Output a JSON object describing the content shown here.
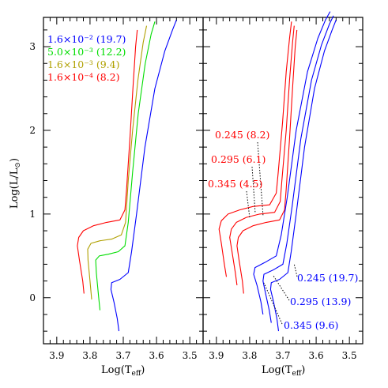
{
  "chart_data": [
    {
      "type": "line",
      "panel": "left",
      "xlabel": "Log(T_eff)",
      "ylabel": "Log(L/L_sun)",
      "xlim": [
        3.94,
        3.46
      ],
      "ylim": [
        -0.55,
        3.35
      ],
      "x_ticks": [
        "3.9",
        "3.8",
        "3.7",
        "3.6",
        "3.5"
      ],
      "y_ticks": [
        "0",
        "1",
        "2",
        "3"
      ],
      "legend": [
        {
          "label": "1.6×10⁻² (19.7)",
          "color": "#0000ff"
        },
        {
          "label": "5.0×10⁻³ (12.2)",
          "color": "#00dd00"
        },
        {
          "label": "1.6×10⁻³ (9.4)",
          "color": "#b0a000"
        },
        {
          "label": "1.6×10⁻⁴ (8.2)",
          "color": "#ff0000"
        }
      ],
      "series": [
        {
          "color": "#ff0000",
          "points": [
            [
              3.818,
              0.05
            ],
            [
              3.822,
              0.2
            ],
            [
              3.832,
              0.45
            ],
            [
              3.838,
              0.62
            ],
            [
              3.834,
              0.72
            ],
            [
              3.82,
              0.8
            ],
            [
              3.79,
              0.86
            ],
            [
              3.75,
              0.9
            ],
            [
              3.71,
              0.93
            ],
            [
              3.695,
              1.05
            ],
            [
              3.69,
              1.3
            ],
            [
              3.68,
              1.9
            ],
            [
              3.671,
              2.5
            ],
            [
              3.663,
              3.0
            ],
            [
              3.658,
              3.2
            ]
          ]
        },
        {
          "color": "#b0a000",
          "points": [
            [
              3.795,
              -0.02
            ],
            [
              3.8,
              0.2
            ],
            [
              3.806,
              0.45
            ],
            [
              3.807,
              0.58
            ],
            [
              3.797,
              0.65
            ],
            [
              3.77,
              0.68
            ],
            [
              3.735,
              0.7
            ],
            [
              3.706,
              0.75
            ],
            [
              3.693,
              0.9
            ],
            [
              3.685,
              1.4
            ],
            [
              3.672,
              2.0
            ],
            [
              3.656,
              2.6
            ],
            [
              3.64,
              3.05
            ],
            [
              3.63,
              3.25
            ]
          ]
        },
        {
          "color": "#00dd00",
          "points": [
            [
              3.77,
              -0.15
            ],
            [
              3.775,
              0.05
            ],
            [
              3.781,
              0.3
            ],
            [
              3.783,
              0.45
            ],
            [
              3.772,
              0.5
            ],
            [
              3.745,
              0.52
            ],
            [
              3.715,
              0.55
            ],
            [
              3.695,
              0.62
            ],
            [
              3.685,
              0.9
            ],
            [
              3.672,
              1.5
            ],
            [
              3.655,
              2.2
            ],
            [
              3.634,
              2.8
            ],
            [
              3.616,
              3.15
            ],
            [
              3.605,
              3.3
            ]
          ]
        },
        {
          "color": "#0000ff",
          "points": [
            [
              3.713,
              -0.4
            ],
            [
              3.718,
              -0.25
            ],
            [
              3.728,
              -0.05
            ],
            [
              3.737,
              0.1
            ],
            [
              3.735,
              0.18
            ],
            [
              3.71,
              0.22
            ],
            [
              3.685,
              0.3
            ],
            [
              3.675,
              0.55
            ],
            [
              3.66,
              1.0
            ],
            [
              3.635,
              1.8
            ],
            [
              3.605,
              2.5
            ],
            [
              3.575,
              2.95
            ],
            [
              3.552,
              3.2
            ],
            [
              3.54,
              3.32
            ]
          ]
        }
      ]
    },
    {
      "type": "line",
      "panel": "right",
      "xlabel": "Log(T_eff)",
      "xlim": [
        3.94,
        3.46
      ],
      "ylim": [
        -0.55,
        3.35
      ],
      "x_ticks": [
        "3.9",
        "3.8",
        "3.7",
        "3.6",
        "3.5"
      ],
      "series": [
        {
          "color": "#ff0000",
          "label": "0.245 (8.2)",
          "points": [
            [
              3.818,
              0.05
            ],
            [
              3.822,
              0.2
            ],
            [
              3.832,
              0.45
            ],
            [
              3.838,
              0.62
            ],
            [
              3.834,
              0.72
            ],
            [
              3.82,
              0.8
            ],
            [
              3.79,
              0.86
            ],
            [
              3.75,
              0.9
            ],
            [
              3.71,
              0.93
            ],
            [
              3.695,
              1.05
            ],
            [
              3.69,
              1.3
            ],
            [
              3.68,
              1.9
            ],
            [
              3.671,
              2.5
            ],
            [
              3.663,
              3.0
            ],
            [
              3.658,
              3.2
            ]
          ]
        },
        {
          "color": "#ff0000",
          "label": "0.295 (6.1)",
          "points": [
            [
              3.838,
              0.15
            ],
            [
              3.843,
              0.3
            ],
            [
              3.853,
              0.55
            ],
            [
              3.86,
              0.72
            ],
            [
              3.855,
              0.82
            ],
            [
              3.84,
              0.9
            ],
            [
              3.81,
              0.96
            ],
            [
              3.77,
              1.0
            ],
            [
              3.725,
              1.02
            ],
            [
              3.708,
              1.15
            ],
            [
              3.703,
              1.4
            ],
            [
              3.69,
              2.0
            ],
            [
              3.68,
              2.6
            ],
            [
              3.671,
              3.05
            ],
            [
              3.666,
              3.25
            ]
          ]
        },
        {
          "color": "#ff0000",
          "label": "0.345 (4.5)",
          "points": [
            [
              3.87,
              0.25
            ],
            [
              3.876,
              0.4
            ],
            [
              3.885,
              0.65
            ],
            [
              3.892,
              0.82
            ],
            [
              3.885,
              0.92
            ],
            [
              3.865,
              1.0
            ],
            [
              3.83,
              1.05
            ],
            [
              3.79,
              1.09
            ],
            [
              3.74,
              1.11
            ],
            [
              3.72,
              1.25
            ],
            [
              3.714,
              1.5
            ],
            [
              3.701,
              2.1
            ],
            [
              3.69,
              2.7
            ],
            [
              3.68,
              3.1
            ],
            [
              3.674,
              3.3
            ]
          ]
        },
        {
          "color": "#0000ff",
          "label": "0.245 (19.7)",
          "points": [
            [
              3.713,
              -0.4
            ],
            [
              3.718,
              -0.25
            ],
            [
              3.728,
              -0.05
            ],
            [
              3.737,
              0.1
            ],
            [
              3.735,
              0.18
            ],
            [
              3.71,
              0.22
            ],
            [
              3.685,
              0.3
            ],
            [
              3.675,
              0.55
            ],
            [
              3.66,
              1.0
            ],
            [
              3.635,
              1.8
            ],
            [
              3.605,
              2.5
            ],
            [
              3.575,
              2.95
            ],
            [
              3.552,
              3.2
            ],
            [
              3.54,
              3.32
            ]
          ]
        },
        {
          "color": "#0000ff",
          "label": "0.295 (13.9)",
          "points": [
            [
              3.735,
              -0.3
            ],
            [
              3.741,
              -0.15
            ],
            [
              3.752,
              0.05
            ],
            [
              3.76,
              0.2
            ],
            [
              3.757,
              0.28
            ],
            [
              3.73,
              0.33
            ],
            [
              3.7,
              0.4
            ],
            [
              3.688,
              0.65
            ],
            [
              3.672,
              1.1
            ],
            [
              3.646,
              1.9
            ],
            [
              3.614,
              2.6
            ],
            [
              3.584,
              3.02
            ],
            [
              3.56,
              3.27
            ],
            [
              3.548,
              3.37
            ]
          ]
        },
        {
          "color": "#0000ff",
          "label": "0.345 (9.6)",
          "points": [
            [
              3.76,
              -0.2
            ],
            [
              3.766,
              -0.05
            ],
            [
              3.778,
              0.15
            ],
            [
              3.788,
              0.28
            ],
            [
              3.784,
              0.36
            ],
            [
              3.755,
              0.42
            ],
            [
              3.72,
              0.5
            ],
            [
              3.705,
              0.75
            ],
            [
              3.687,
              1.2
            ],
            [
              3.66,
              2.0
            ],
            [
              3.626,
              2.7
            ],
            [
              3.595,
              3.1
            ],
            [
              3.572,
              3.32
            ],
            [
              3.558,
              3.42
            ]
          ]
        }
      ]
    }
  ]
}
